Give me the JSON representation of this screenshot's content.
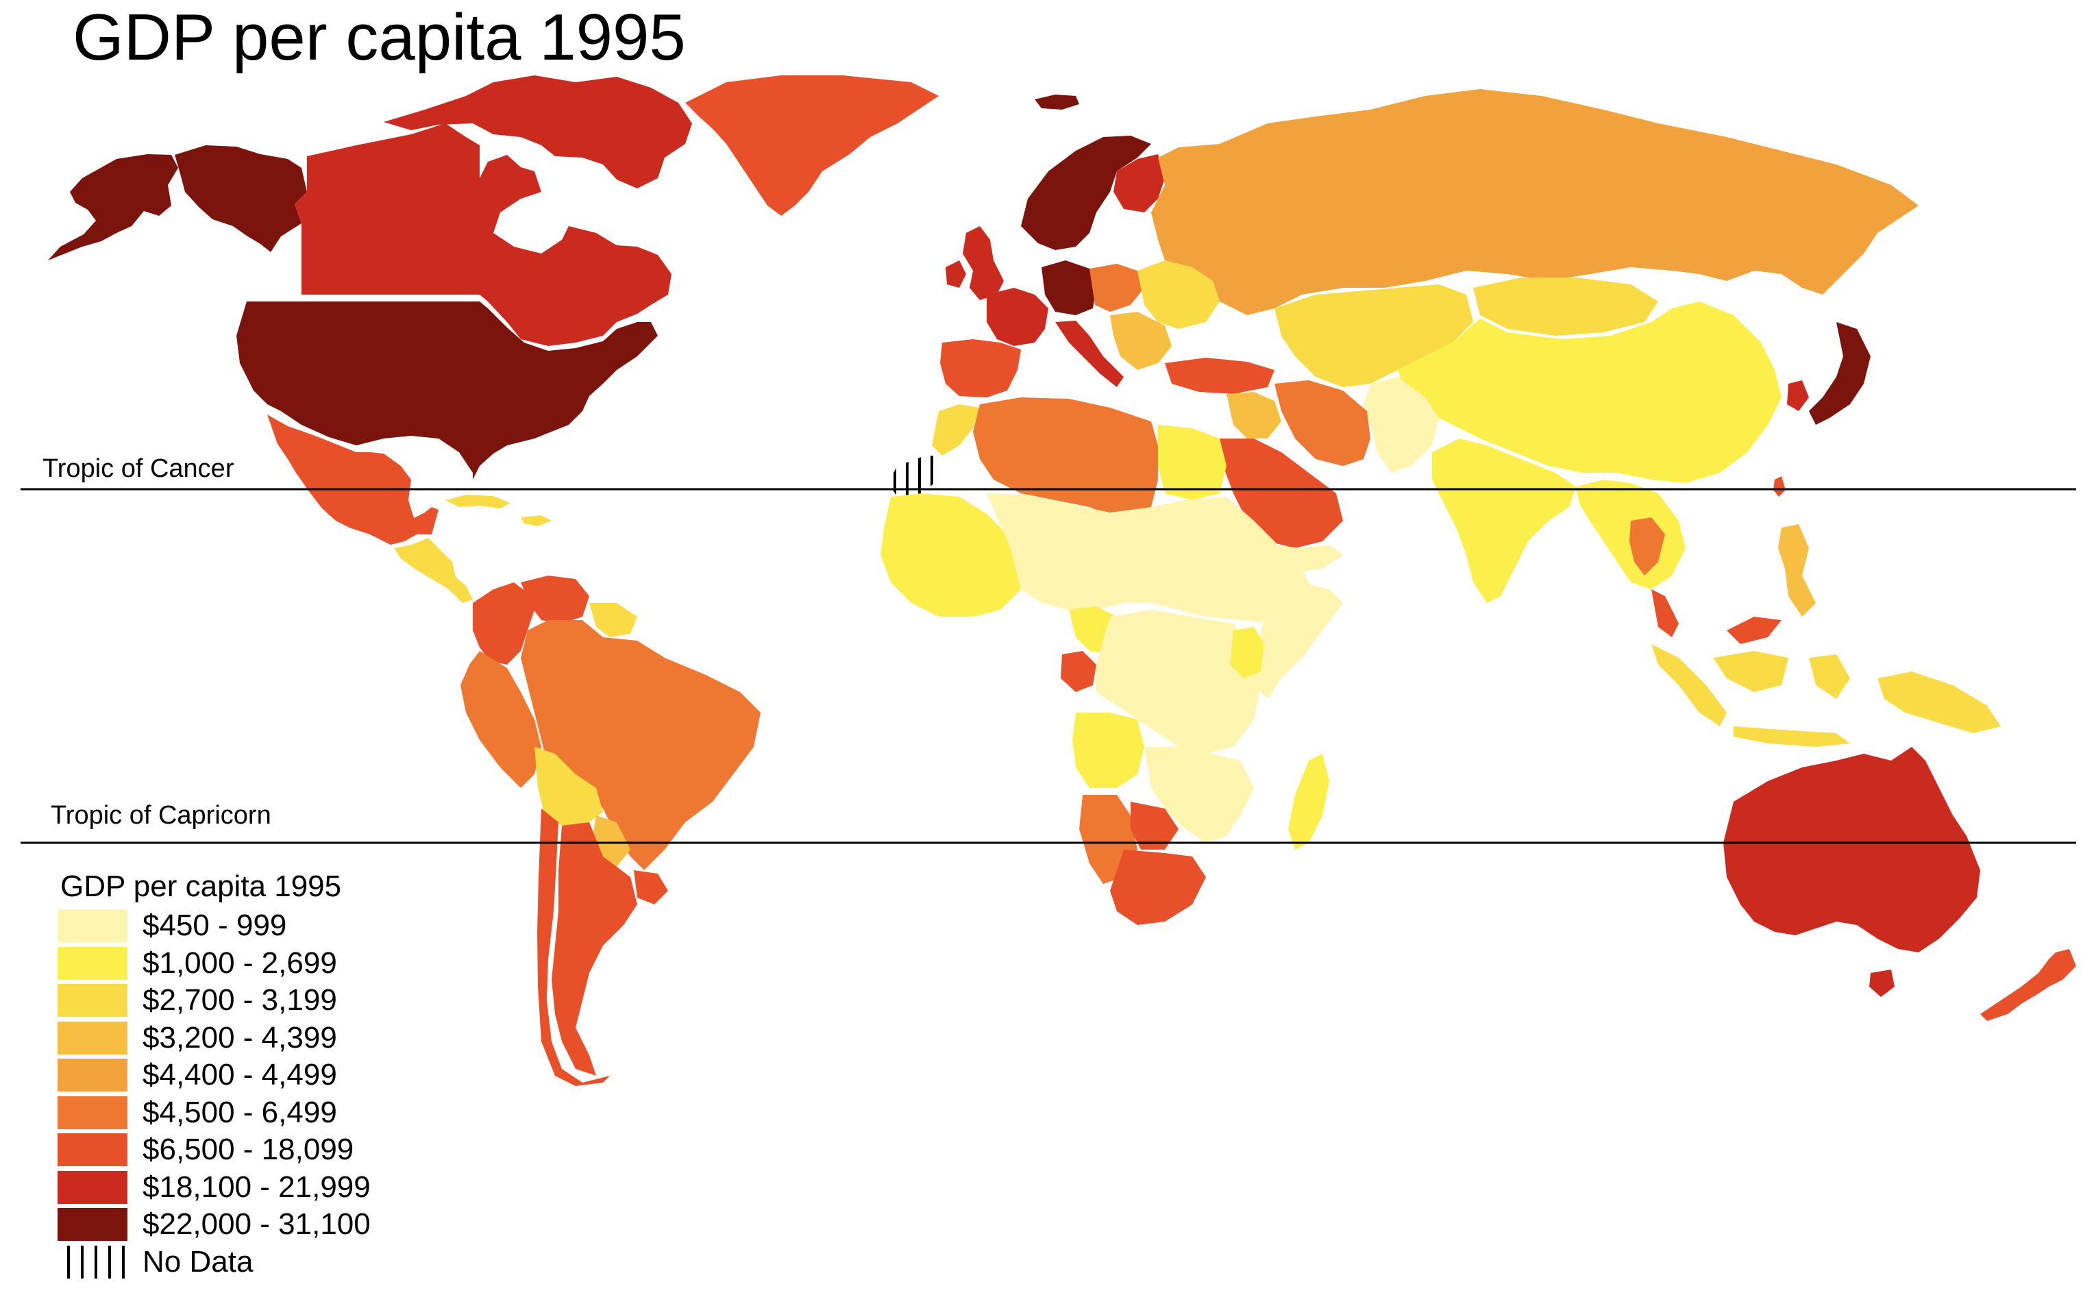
{
  "title": "GDP per capita 1995",
  "reference_lines": {
    "cancer": "Tropic of Cancer",
    "capricorn": "Tropic of Capricorn"
  },
  "legend": {
    "title": "GDP per capita 1995",
    "classes": [
      {
        "label": "$450 - 999",
        "color": "#fff4b0"
      },
      {
        "label": "$1,000 - 2,699",
        "color": "#fcef4c"
      },
      {
        "label": "$2,700 - 3,199",
        "color": "#f8db45"
      },
      {
        "label": "$3,200 - 4,399",
        "color": "#f6bf42"
      },
      {
        "label": "$4,400 - 4,499",
        "color": "#f2a23c"
      },
      {
        "label": "$4,500 - 6,499",
        "color": "#ee7832"
      },
      {
        "label": "$6,500 - 18,099",
        "color": "#e8502a"
      },
      {
        "label": "$18,100 - 21,999",
        "color": "#cb2a1f"
      },
      {
        "label": "$22,000 - 31,100",
        "color": "#7a140d"
      }
    ],
    "no_data": {
      "label": "No Data",
      "pattern": "vertical-hatch"
    }
  },
  "regions": [
    {
      "name": "United States",
      "class": 8
    },
    {
      "name": "Canada",
      "class": 7
    },
    {
      "name": "Alaska",
      "class": 8
    },
    {
      "name": "Greenland",
      "class": 6
    },
    {
      "name": "Mexico",
      "class": 6
    },
    {
      "name": "Central America",
      "class": 2
    },
    {
      "name": "Caribbean",
      "class": 2
    },
    {
      "name": "Venezuela",
      "class": 6
    },
    {
      "name": "Colombia",
      "class": 6
    },
    {
      "name": "Guianas",
      "class": 2
    },
    {
      "name": "Brazil",
      "class": 5
    },
    {
      "name": "Peru",
      "class": 5
    },
    {
      "name": "Bolivia",
      "class": 2
    },
    {
      "name": "Paraguay",
      "class": 3
    },
    {
      "name": "Uruguay",
      "class": 6
    },
    {
      "name": "Argentina",
      "class": 6
    },
    {
      "name": "Chile",
      "class": 6
    },
    {
      "name": "Scandinavia",
      "class": 8
    },
    {
      "name": "Finland",
      "class": 7
    },
    {
      "name": "United Kingdom",
      "class": 7
    },
    {
      "name": "Ireland",
      "class": 7
    },
    {
      "name": "Iceland",
      "class": 8
    },
    {
      "name": "Iberia",
      "class": 6
    },
    {
      "name": "France",
      "class": 7
    },
    {
      "name": "Germany",
      "class": 8
    },
    {
      "name": "Italy",
      "class": 7
    },
    {
      "name": "Central Europe",
      "class": 5
    },
    {
      "name": "Eastern Europe",
      "class": 2
    },
    {
      "name": "Balkans",
      "class": 3
    },
    {
      "name": "Turkey",
      "class": 6
    },
    {
      "name": "Russia",
      "class": 4
    },
    {
      "name": "Kazakhstan and Central Asia",
      "class": 2
    },
    {
      "name": "China",
      "class": 1
    },
    {
      "name": "Mongolia",
      "class": 2
    },
    {
      "name": "Japan",
      "class": 8
    },
    {
      "name": "South Korea",
      "class": 7
    },
    {
      "name": "Taiwan",
      "class": 6
    },
    {
      "name": "India",
      "class": 1
    },
    {
      "name": "Pakistan and Afghanistan",
      "class": 0
    },
    {
      "name": "Iran",
      "class": 5
    },
    {
      "name": "Iraq and Syria",
      "class": 3
    },
    {
      "name": "Saudi Arabia",
      "class": 6
    },
    {
      "name": "Yemen",
      "class": 0
    },
    {
      "name": "Southeast Asia",
      "class": 1
    },
    {
      "name": "Thailand",
      "class": 5
    },
    {
      "name": "Malaysia",
      "class": 6
    },
    {
      "name": "Indonesia",
      "class": 2
    },
    {
      "name": "Philippines",
      "class": 3
    },
    {
      "name": "Papua New Guinea",
      "class": 2
    },
    {
      "name": "Australia",
      "class": 7
    },
    {
      "name": "New Zealand",
      "class": 6
    },
    {
      "name": "Tasmania",
      "class": 7
    },
    {
      "name": "North Africa",
      "class": 5
    },
    {
      "name": "Morocco",
      "class": 2
    },
    {
      "name": "Egypt",
      "class": 1
    },
    {
      "name": "West Africa",
      "class": 1
    },
    {
      "name": "Sahel",
      "class": 0
    },
    {
      "name": "Central Africa",
      "class": 0
    },
    {
      "name": "Cameroon",
      "class": 1
    },
    {
      "name": "Gabon",
      "class": 6
    },
    {
      "name": "East Africa",
      "class": 0
    },
    {
      "name": "Kenya",
      "class": 1
    },
    {
      "name": "Angola",
      "class": 1
    },
    {
      "name": "Zambia and Mozambique",
      "class": 0
    },
    {
      "name": "Namibia",
      "class": 5
    },
    {
      "name": "Botswana",
      "class": 6
    },
    {
      "name": "South Africa",
      "class": 6
    },
    {
      "name": "Madagascar",
      "class": 1
    },
    {
      "name": "Western Sahara",
      "class": -1
    }
  ]
}
